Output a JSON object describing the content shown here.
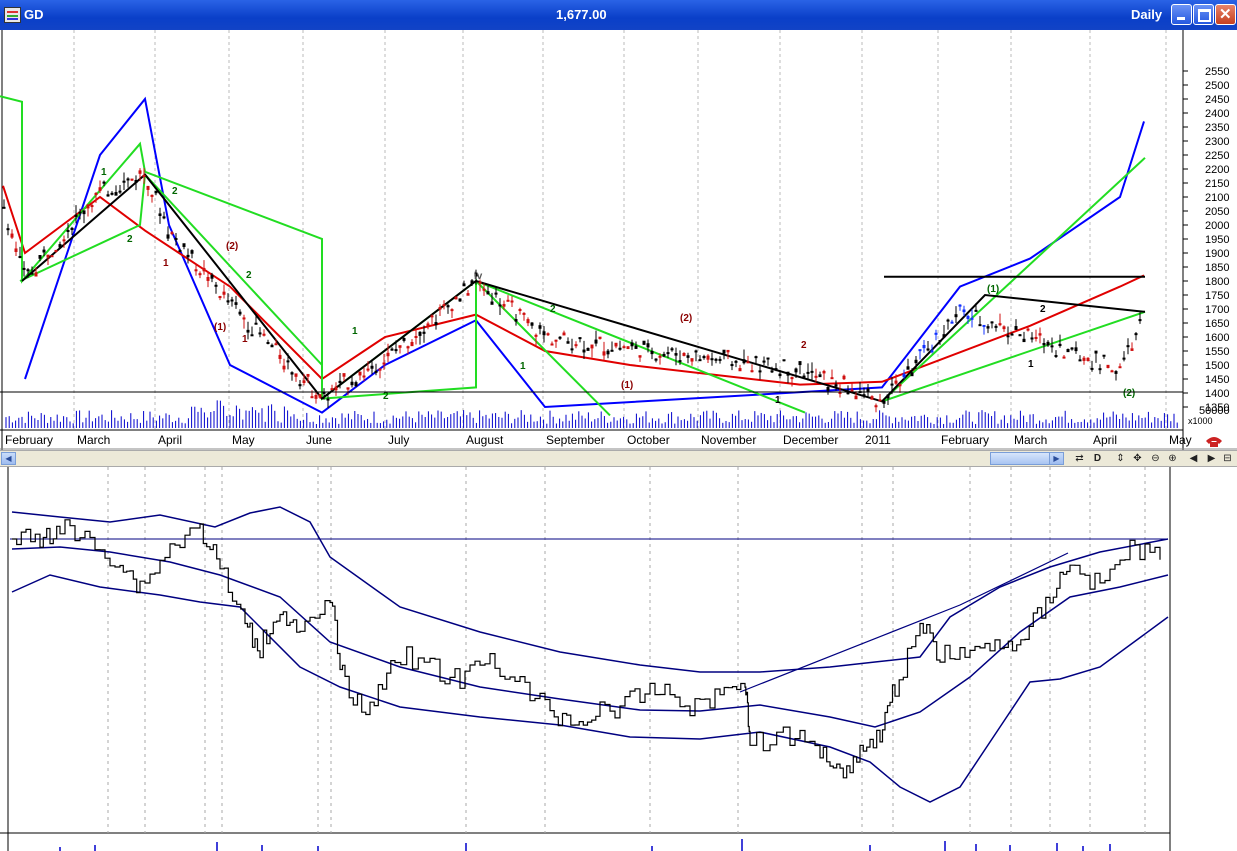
{
  "window": {
    "symbol": "GD",
    "price": "1,677.00",
    "period": "Daily"
  },
  "toolbar": {
    "icons": [
      "redraw-icon",
      "d-icon",
      "vertical-arrows-icon",
      "move-icon",
      "zoom-out-icon",
      "zoom-in-icon",
      "scroll-left-icon",
      "scroll-right-icon",
      "split-icon"
    ],
    "d_label": "D"
  },
  "colors": {
    "candle": "#000000",
    "upper_band": "#0000ff",
    "mid_band": "#e00000",
    "channel": "#22dd22",
    "trend": "#000000",
    "volume": "#0000cc",
    "indicator": "#000080",
    "titlebar": "#0a3fc8"
  },
  "chart_data": [
    {
      "type": "candlestick",
      "title": "GD Daily",
      "ylim": [
        1300,
        2600
      ],
      "yticks": [
        "2550",
        "2500",
        "2450",
        "2400",
        "2350",
        "2300",
        "2250",
        "2200",
        "2150",
        "2100",
        "2050",
        "2000",
        "1950",
        "1900",
        "1850",
        "1800",
        "1750",
        "1700",
        "1650",
        "1600",
        "1550",
        "1500",
        "1450",
        "1400",
        "1350"
      ],
      "months": [
        "February",
        "March",
        "April",
        "May",
        "June",
        "July",
        "August",
        "September",
        "October",
        "November",
        "December",
        "2011",
        "February",
        "March",
        "April",
        "May"
      ],
      "wave_labels": [
        "1",
        "2",
        "1",
        "2",
        "(1)",
        "(2)",
        "1",
        "2",
        "1",
        "2",
        "iv",
        "1",
        "2",
        "(1)",
        "(2)",
        "1",
        "2",
        "(1)",
        "1",
        "2",
        "(2)"
      ],
      "price_points": [
        {
          "x": "Jan-10",
          "y": 2080
        },
        {
          "x": "Feb-10",
          "y": 1810
        },
        {
          "x": "Mar-10",
          "y": 2120
        },
        {
          "x": "Apr-10",
          "y": 2180
        },
        {
          "x": "Apr-10",
          "y": 1980
        },
        {
          "x": "May-10",
          "y": 1720
        },
        {
          "x": "Jun-10",
          "y": 1380
        },
        {
          "x": "Jul-10",
          "y": 1520
        },
        {
          "x": "Aug-10",
          "y": 1800
        },
        {
          "x": "Sep-10",
          "y": 1600
        },
        {
          "x": "Oct-10",
          "y": 1560
        },
        {
          "x": "Nov-10",
          "y": 1520
        },
        {
          "x": "Dec-10",
          "y": 1480
        },
        {
          "x": "Jan-11",
          "y": 1370
        },
        {
          "x": "Feb-11",
          "y": 1690
        },
        {
          "x": "Mar-11",
          "y": 1600
        },
        {
          "x": "Apr-11",
          "y": 1480
        },
        {
          "x": "Apr-11",
          "y": 1677
        }
      ],
      "upper_band": [
        {
          "x": "Feb-10",
          "y": 1450
        },
        {
          "x": "Mar-10",
          "y": 2250
        },
        {
          "x": "Apr-10",
          "y": 2450
        },
        {
          "x": "Apr-10",
          "y": 2000
        },
        {
          "x": "May-10",
          "y": 1500
        },
        {
          "x": "Jun-10",
          "y": 1330
        },
        {
          "x": "Jul-10",
          "y": 1500
        },
        {
          "x": "Aug-10",
          "y": 1660
        },
        {
          "x": "Sep-10",
          "y": 1350
        },
        {
          "x": "Jan-11",
          "y": 1420
        },
        {
          "x": "Feb-11",
          "y": 1780
        },
        {
          "x": "Mar-11",
          "y": 1880
        },
        {
          "x": "Apr-11",
          "y": 2100
        },
        {
          "x": "Apr-11",
          "y": 2370
        }
      ],
      "mid_band": [
        {
          "x": "Jan-10",
          "y": 2140
        },
        {
          "x": "Feb-10",
          "y": 1900
        },
        {
          "x": "Mar-10",
          "y": 2100
        },
        {
          "x": "Apr-10",
          "y": 1980
        },
        {
          "x": "May-10",
          "y": 1780
        },
        {
          "x": "Jun-10",
          "y": 1450
        },
        {
          "x": "Jul-10",
          "y": 1600
        },
        {
          "x": "Aug-10",
          "y": 1680
        },
        {
          "x": "Sep-10",
          "y": 1550
        },
        {
          "x": "Oct-10",
          "y": 1500
        },
        {
          "x": "Dec-10",
          "y": 1430
        },
        {
          "x": "Jan-11",
          "y": 1440
        },
        {
          "x": "Mar-11",
          "y": 1640
        },
        {
          "x": "Apr-11",
          "y": 1780
        },
        {
          "x": "Apr-11",
          "y": 1820
        }
      ],
      "resistance": 1815,
      "projection_upper": 2240,
      "projection_lower": 1690,
      "grid": true
    },
    {
      "type": "volume",
      "yticks": [
        "50000"
      ],
      "unit": "x1000"
    },
    {
      "type": "line",
      "title": "",
      "xlabel": "",
      "ylabel": "",
      "grid": true,
      "note": "indicator pane with bands (no labels shown)"
    }
  ]
}
